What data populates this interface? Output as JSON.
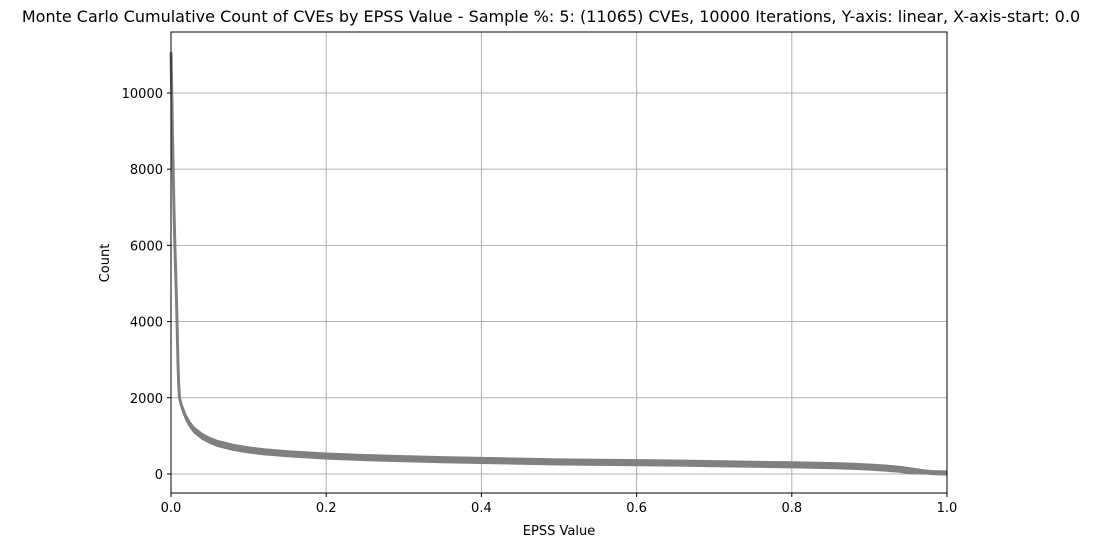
{
  "chart_data": {
    "type": "line",
    "title": "Monte Carlo Cumulative Count of CVEs by EPSS Value - Sample %: 5: (11065) CVEs, 10000 Iterations, Y-axis: linear, X-axis-start: 0.0",
    "xlabel": "EPSS Value",
    "ylabel": "Count",
    "xlim": [
      0.0,
      1.0
    ],
    "ylim": [
      -500,
      11600
    ],
    "x_ticks": [
      "0.0",
      "0.2",
      "0.4",
      "0.6",
      "0.8",
      "1.0"
    ],
    "y_ticks": [
      "0",
      "2000",
      "4000",
      "6000",
      "8000",
      "10000"
    ],
    "x_tick_values": [
      0.0,
      0.2,
      0.4,
      0.6,
      0.8,
      1.0
    ],
    "y_tick_values": [
      0,
      2000,
      4000,
      6000,
      8000,
      10000
    ],
    "grid": true,
    "series_color": "#808080",
    "x": [
      0.0,
      0.001,
      0.002,
      0.003,
      0.004,
      0.005,
      0.006,
      0.007,
      0.008,
      0.009,
      0.01,
      0.011,
      0.012,
      0.015,
      0.02,
      0.025,
      0.03,
      0.04,
      0.05,
      0.06,
      0.08,
      0.1,
      0.12,
      0.15,
      0.2,
      0.25,
      0.3,
      0.35,
      0.4,
      0.45,
      0.5,
      0.55,
      0.6,
      0.65,
      0.7,
      0.75,
      0.8,
      0.85,
      0.88,
      0.9,
      0.92,
      0.94,
      0.95,
      0.96,
      0.97,
      0.98,
      0.99,
      1.0
    ],
    "y": [
      11065,
      10000,
      8800,
      7800,
      6800,
      6000,
      5300,
      4600,
      3800,
      2900,
      2300,
      2000,
      1900,
      1700,
      1450,
      1280,
      1150,
      990,
      880,
      800,
      700,
      630,
      580,
      530,
      470,
      430,
      400,
      375,
      355,
      335,
      315,
      305,
      295,
      285,
      270,
      255,
      240,
      220,
      200,
      180,
      155,
      120,
      90,
      60,
      30,
      10,
      3,
      0
    ],
    "band_width": 80,
    "series": [
      {
        "values": [
          11065,
          10000,
          8800,
          7800,
          6800,
          6000,
          5300,
          4600,
          3800,
          2900,
          2300,
          2000,
          1900,
          1700,
          1450,
          1280,
          1150,
          990,
          880,
          800,
          700,
          630,
          580,
          530,
          470,
          430,
          400,
          375,
          355,
          335,
          315,
          305,
          295,
          285,
          270,
          255,
          240,
          220,
          200,
          180,
          155,
          120,
          90,
          60,
          30,
          10,
          3,
          0
        ]
      }
    ]
  }
}
